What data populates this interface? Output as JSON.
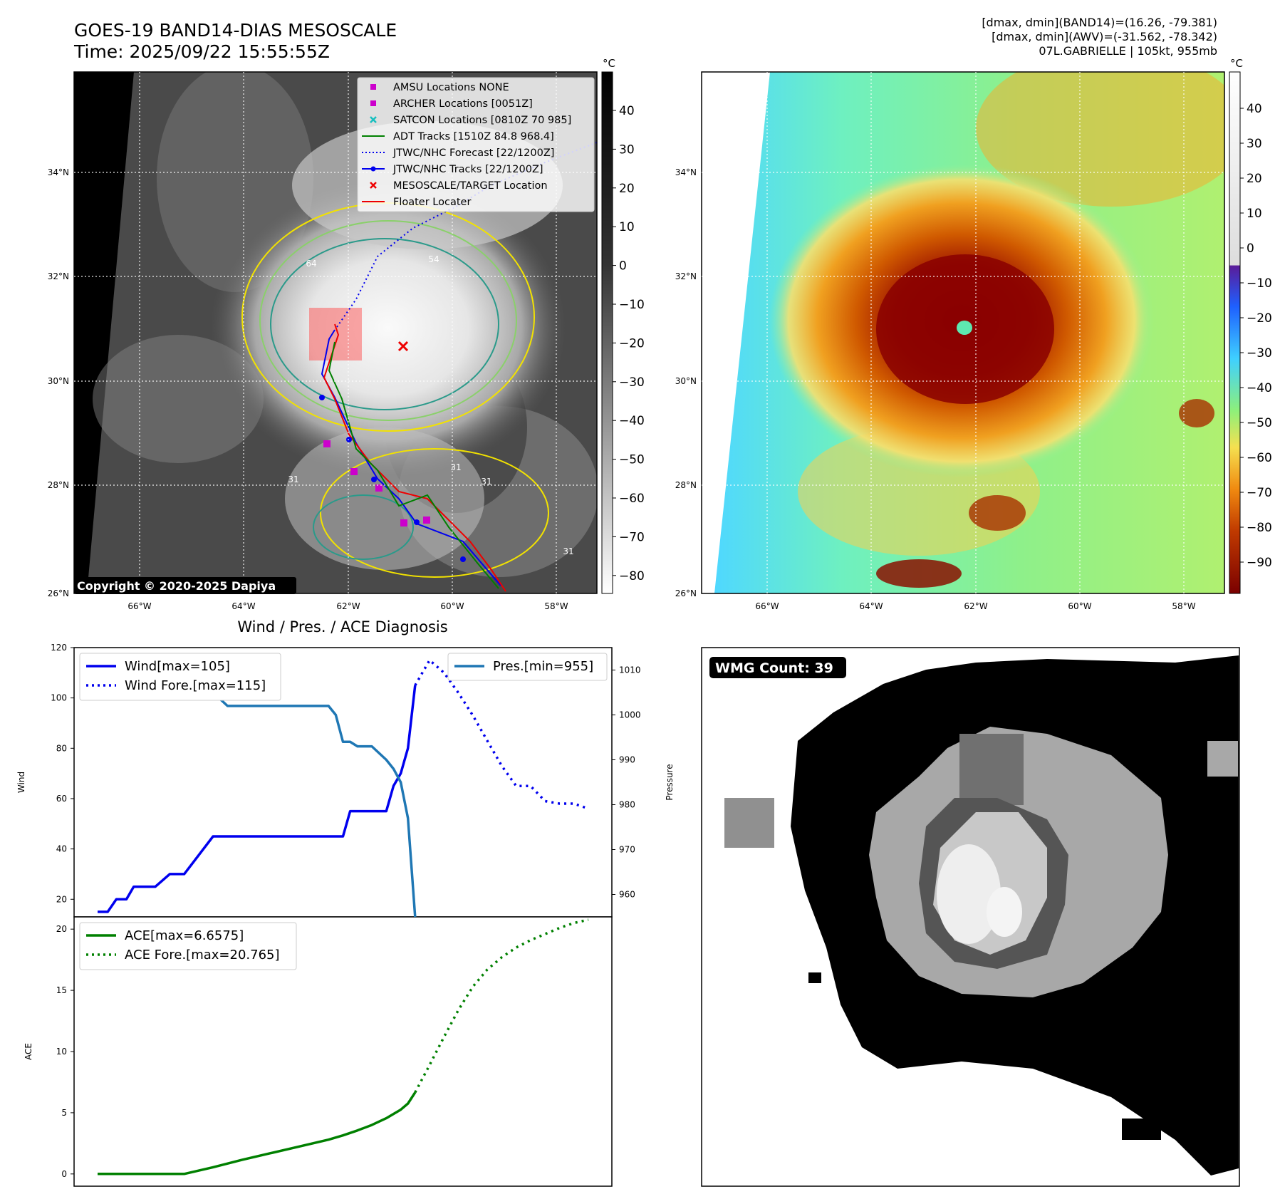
{
  "header": {
    "title_line1": "GOES-19 BAND14-DIAS MESOSCALE",
    "title_line2": "Time: 2025/09/22 15:55:55Z",
    "info_line1": "[dmax, dmin](BAND14)=(16.26, -79.381)",
    "info_line2": "[dmax, dmin](AWV)=(-31.562, -78.342)",
    "info_line3": "07L.GABRIELLE | 105kt, 955mb"
  },
  "map_axes": {
    "lat_labels": [
      "34°N",
      "32°N",
      "30°N",
      "28°N",
      "26°N"
    ],
    "lon_labels": [
      "66°W",
      "64°W",
      "62°W",
      "60°W",
      "58°W"
    ]
  },
  "ir_panel": {
    "copyright": "Copyright © 2020-2025 Dapiya",
    "contour_labels": [
      "64",
      "54",
      "31",
      "31",
      "31",
      "31"
    ],
    "legend": [
      {
        "label": "AMSU Locations NONE",
        "symbol": "square",
        "color": "#cc00cc"
      },
      {
        "label": "ARCHER Locations [0051Z]",
        "symbol": "square",
        "color": "#cc00cc"
      },
      {
        "label": "SATCON Locations [0810Z 70 985]",
        "symbol": "x",
        "color": "#17bfbf"
      },
      {
        "label": "ADT Tracks [1510Z 84.8 968.4]",
        "symbol": "line",
        "color": "#008000"
      },
      {
        "label": "JTWC/NHC Forecast [22/1200Z]",
        "symbol": "dotted",
        "color": "#0000ee"
      },
      {
        "label": "JTWC/NHC Tracks [22/1200Z]",
        "symbol": "line-dot",
        "color": "#0000ee"
      },
      {
        "label": "MESOSCALE/TARGET Location",
        "symbol": "x",
        "color": "#ee0000"
      },
      {
        "label": "Floater Locater",
        "symbol": "line",
        "color": "#ee0000"
      }
    ],
    "colorbar_unit": "°C",
    "colorbar_ticks": [
      "40",
      "30",
      "20",
      "10",
      "0",
      "−10",
      "−20",
      "−30",
      "−40",
      "−50",
      "−60",
      "−70",
      "−80"
    ]
  },
  "enhanced_panel": {
    "colorbar_unit": "°C",
    "colorbar_ticks": [
      "40",
      "30",
      "20",
      "10",
      "0",
      "−10",
      "−20",
      "−30",
      "−40",
      "−50",
      "−60",
      "−70",
      "−80",
      "−90"
    ]
  },
  "wmg_panel": {
    "badge": "WMG Count: 39"
  },
  "chart_data": [
    {
      "type": "line",
      "title": "Wind / Pres. / ACE Diagnosis",
      "ylabel": "Wind",
      "y2label": "Pressure",
      "ylim": [
        13,
        120
      ],
      "y2lim": [
        955,
        1015
      ],
      "x_index_range": [
        0,
        34
      ],
      "yticks": [
        20,
        40,
        60,
        80,
        100,
        120
      ],
      "y2ticks": [
        960,
        970,
        980,
        990,
        1000,
        1010
      ],
      "series": [
        {
          "name": "Wind[max=105]",
          "color": "#0000ee",
          "style": "solid",
          "x": [
            0,
            0.7,
            1.3,
            2,
            2.5,
            3,
            4,
            5,
            5.5,
            6,
            7,
            8,
            9,
            10,
            11,
            12,
            13,
            14,
            15,
            16,
            17,
            17.5,
            18,
            19,
            20,
            20.5,
            21,
            21.5,
            22
          ],
          "values": [
            15,
            15,
            20,
            20,
            25,
            25,
            25,
            30,
            30,
            30,
            37.5,
            45,
            45,
            45,
            45,
            45,
            45,
            45,
            45,
            45,
            45,
            55,
            55,
            55,
            55,
            65,
            70,
            80,
            105
          ]
        },
        {
          "name": "Wind Fore.[max=115]",
          "color": "#0000ee",
          "style": "dotted",
          "x": [
            22,
            23,
            24,
            25,
            26,
            27,
            28,
            29,
            30,
            31,
            32,
            33,
            34
          ],
          "values": [
            105,
            115,
            110,
            102,
            93,
            83,
            73,
            65,
            65,
            59,
            58,
            58,
            56
          ]
        },
        {
          "name": "Pres.[min=955]",
          "color": "#1f77b4",
          "style": "solid",
          "axis": "right",
          "x": [
            0,
            0.7,
            1.3,
            2,
            3,
            4,
            5,
            6,
            7,
            8,
            9,
            10,
            11,
            12,
            13,
            14,
            15,
            16,
            16.5,
            17,
            17.5,
            18,
            19,
            20,
            20.5,
            21,
            21.5,
            22
          ],
          "values": [
            1013,
            1013,
            1012,
            1012,
            1011,
            1010,
            1008,
            1008,
            1005,
            1005,
            1002,
            1002,
            1002,
            1002,
            1002,
            1002,
            1002,
            1002,
            1000,
            994,
            994,
            993,
            993,
            990,
            988,
            985,
            977,
            955
          ]
        }
      ]
    },
    {
      "type": "line",
      "ylabel": "ACE",
      "ylim": [
        -1,
        21
      ],
      "x_index_range": [
        0,
        34
      ],
      "yticks": [
        0,
        5,
        10,
        15,
        20
      ],
      "series": [
        {
          "name": "ACE[max=6.6575]",
          "color": "#008000",
          "style": "solid",
          "x": [
            0,
            6,
            8,
            10,
            12,
            14,
            16,
            17,
            18,
            19,
            20,
            20.5,
            21,
            21.5,
            22
          ],
          "values": [
            0,
            0,
            0.55,
            1.15,
            1.7,
            2.25,
            2.8,
            3.15,
            3.55,
            4.0,
            4.55,
            4.9,
            5.25,
            5.75,
            6.6575
          ]
        },
        {
          "name": "ACE Fore.[max=20.765]",
          "color": "#008000",
          "style": "dotted",
          "x": [
            22,
            23,
            24,
            25,
            26,
            27,
            28,
            29,
            30,
            31,
            32,
            33,
            34
          ],
          "values": [
            6.6575,
            8.9,
            11.2,
            13.4,
            15.3,
            16.7,
            17.7,
            18.5,
            19.1,
            19.6,
            20.1,
            20.5,
            20.765
          ]
        }
      ]
    }
  ]
}
